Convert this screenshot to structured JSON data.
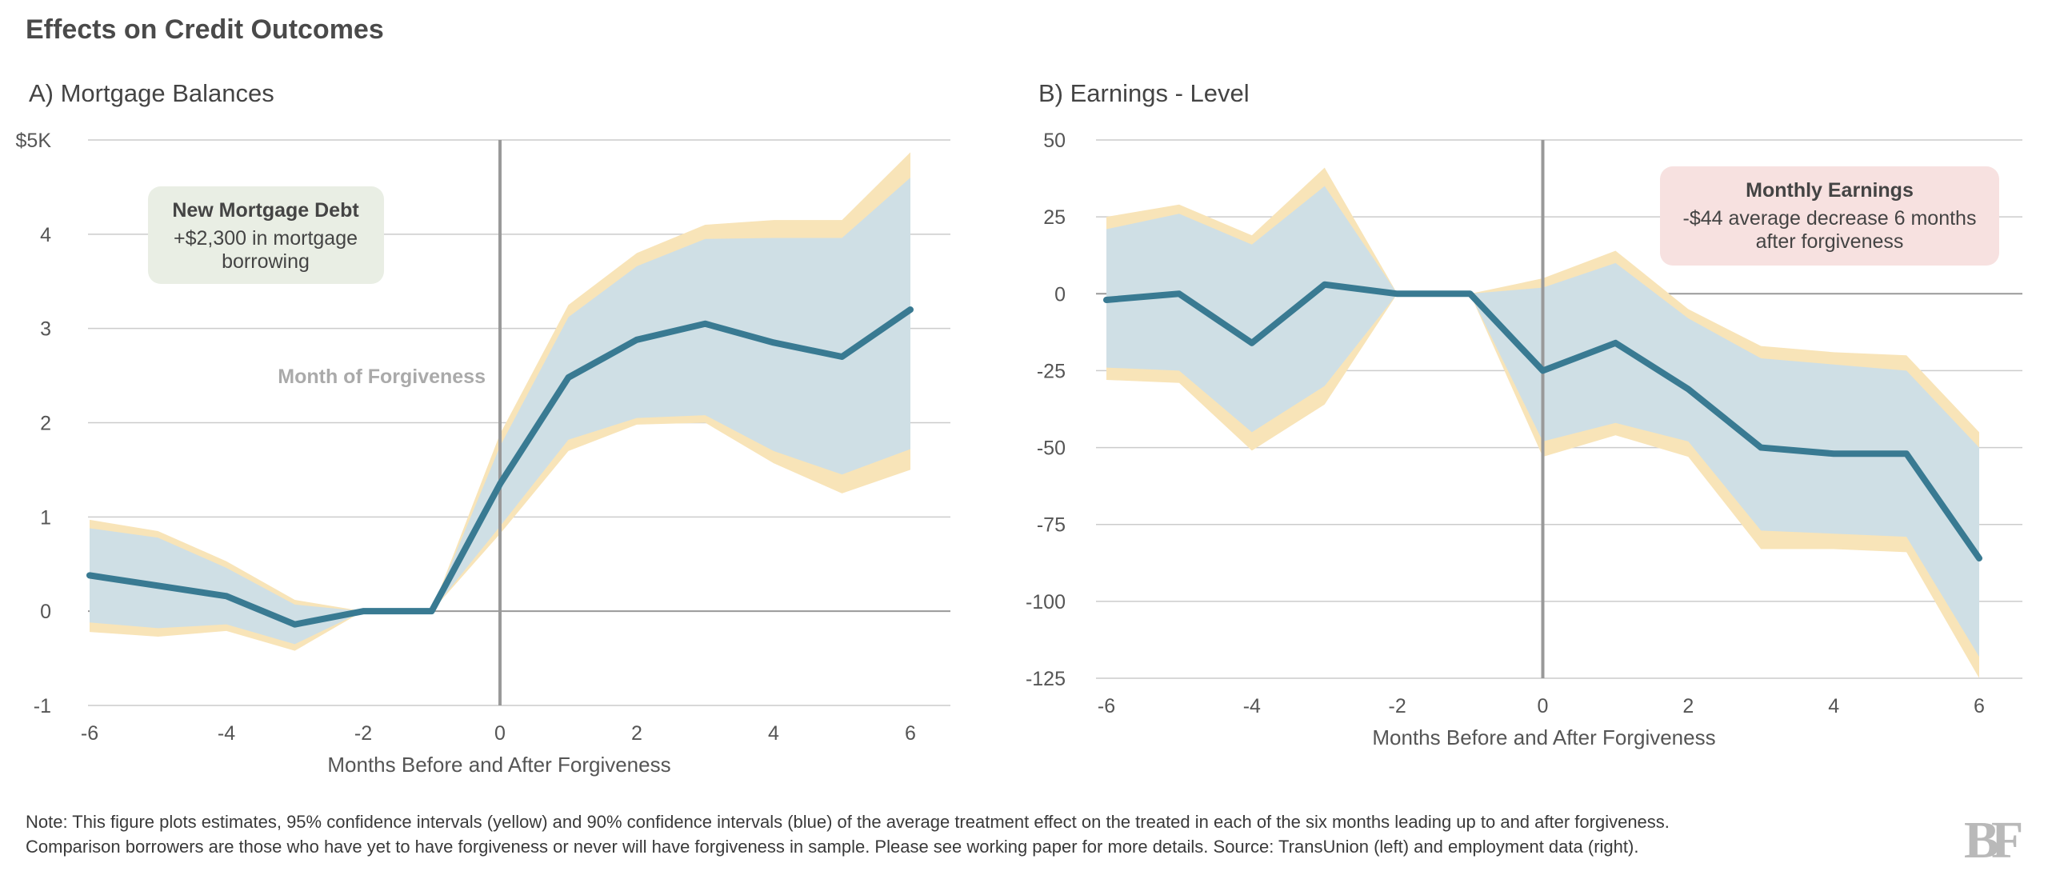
{
  "title": "Effects on Credit Outcomes",
  "note": {
    "line1": "Note: This figure plots estimates, 95% confidence intervals (yellow) and 90% confidence intervals (blue) of the average treatment effect on the treated in each of the six months leading up to and after forgiveness.",
    "line2": "Comparison borrowers are those who have yet to have forgiveness or never will have forgiveness in sample. Please see working paper for more details. Source: TransUnion (left) and employment data (right)."
  },
  "logo": {
    "text": "BF"
  },
  "colors": {
    "line": "#397a92",
    "ci90": "#cfdfe5",
    "ci95": "#f8e4b8",
    "grid": "#cccccc",
    "zero": "#999999",
    "tick": "#555555"
  },
  "chart_data": [
    {
      "type": "line",
      "title": "A) Mortgage Balances",
      "xlabel": "Months Before and After Forgiveness",
      "ylabel": "",
      "x": [
        -6,
        -5,
        -4,
        -3,
        -2,
        -1,
        0,
        1,
        2,
        3,
        4,
        5,
        6
      ],
      "xlim": [
        -6,
        6
      ],
      "ylim": [
        -1,
        5
      ],
      "xticks": [
        -6,
        -4,
        -2,
        0,
        2,
        4,
        6
      ],
      "xtick_labels": [
        "-6",
        "-4",
        "-2",
        "0",
        "2",
        "4",
        "6"
      ],
      "yticks": [
        -1,
        0,
        1,
        2,
        3,
        4,
        5
      ],
      "ytick_labels": [
        "-1",
        "0",
        "1",
        "2",
        "3",
        "4",
        "$5K"
      ],
      "grid": true,
      "series": [
        {
          "name": "Estimate",
          "values": [
            0.38,
            0.27,
            0.16,
            -0.14,
            0,
            0,
            1.35,
            2.48,
            2.88,
            3.05,
            2.85,
            2.7,
            3.2
          ]
        },
        {
          "name": "90% CI lower",
          "values": [
            -0.12,
            -0.18,
            -0.14,
            -0.35,
            0,
            0,
            0.9,
            1.82,
            2.05,
            2.08,
            1.7,
            1.45,
            1.72
          ]
        },
        {
          "name": "90% CI upper",
          "values": [
            0.88,
            0.78,
            0.46,
            0.07,
            0,
            0,
            1.75,
            3.12,
            3.66,
            3.95,
            3.96,
            3.96,
            4.6
          ]
        },
        {
          "name": "95% CI lower",
          "values": [
            -0.22,
            -0.27,
            -0.21,
            -0.42,
            0,
            0,
            0.82,
            1.7,
            1.98,
            2.0,
            1.57,
            1.25,
            1.5
          ]
        },
        {
          "name": "95% CI upper",
          "values": [
            0.97,
            0.85,
            0.53,
            0.12,
            0,
            0,
            1.88,
            3.25,
            3.8,
            4.1,
            4.15,
            4.15,
            4.87
          ]
        }
      ],
      "vline": {
        "x": 0,
        "label": "Month of Forgiveness"
      },
      "annotation": {
        "title": "New Mortgage Debt",
        "line1": "+$2,300 in mortgage",
        "line2": "borrowing",
        "fill": "#e9eee4"
      }
    },
    {
      "type": "line",
      "title": "B) Earnings - Level",
      "xlabel": "Months Before and After Forgiveness",
      "ylabel": "",
      "x": [
        -6,
        -5,
        -4,
        -3,
        -2,
        -1,
        0,
        1,
        2,
        3,
        4,
        5,
        6
      ],
      "xlim": [
        -6,
        6
      ],
      "ylim": [
        -125,
        50
      ],
      "xticks": [
        -6,
        -4,
        -2,
        0,
        2,
        4,
        6
      ],
      "xtick_labels": [
        "-6",
        "-4",
        "-2",
        "0",
        "2",
        "4",
        "6"
      ],
      "yticks": [
        -125,
        -100,
        -75,
        -50,
        -25,
        0,
        25,
        50
      ],
      "ytick_labels": [
        "-125",
        "-100",
        "-75",
        "-50",
        "-25",
        "0",
        "25",
        "50"
      ],
      "grid": true,
      "series": [
        {
          "name": "Estimate",
          "values": [
            -2,
            0,
            -16,
            3,
            0,
            0,
            -25,
            -16,
            -31,
            -50,
            -52,
            -52,
            -86
          ]
        },
        {
          "name": "90% CI lower",
          "values": [
            -24,
            -25,
            -45,
            -30,
            0,
            0,
            -48,
            -42,
            -48,
            -77,
            -78,
            -79,
            -118
          ]
        },
        {
          "name": "90% CI upper",
          "values": [
            21,
            26,
            16,
            35,
            0,
            0,
            2,
            10,
            -8,
            -21,
            -23,
            -25,
            -50
          ]
        },
        {
          "name": "95% CI lower",
          "values": [
            -28,
            -29,
            -51,
            -36,
            0,
            0,
            -53,
            -46,
            -53,
            -83,
            -83,
            -84,
            -125
          ]
        },
        {
          "name": "95% CI upper",
          "values": [
            25,
            29,
            19,
            41,
            0,
            0,
            5,
            14,
            -5,
            -17,
            -19,
            -20,
            -45
          ]
        }
      ],
      "vline": {
        "x": 0,
        "label": ""
      },
      "annotation": {
        "title": "Monthly Earnings",
        "line1": "-$44 average decrease 6 months",
        "line2": "after forgiveness",
        "fill": "#f7e1e0"
      }
    }
  ]
}
